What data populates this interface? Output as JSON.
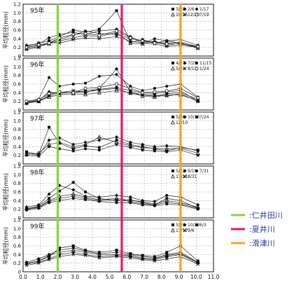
{
  "chart_data": {
    "type": "line",
    "xlabel": "累加距離 (km)",
    "ylabel": "平均粒径(mm)",
    "xlim": [
      0,
      11
    ],
    "ylim": [
      0,
      1.2
    ],
    "x_ticks": [
      "0.0",
      "1.0",
      "2.0",
      "3.0",
      "4.0",
      "5.0",
      "6.0",
      "7.0",
      "8.0",
      "9.0",
      "10.0",
      "11.0"
    ],
    "y_ticks": [
      "0",
      "0.2",
      "0.4",
      "0.6",
      "0.8",
      "1.0",
      "1.2"
    ],
    "grid": true,
    "vertical_markers": [
      {
        "x": 2.0,
        "label": ":仁井田川",
        "color": "#8fd135"
      },
      {
        "x": 5.7,
        "label": ":夏井川",
        "color": "#e8156e"
      },
      {
        "x": 9.1,
        "label": ":滑津川",
        "color": "#f5a623"
      }
    ],
    "panels": [
      {
        "title": "95年",
        "legend": [
          "3/28",
          "2/6",
          "1/17",
          "10/25",
          "12/20",
          "7/19"
        ],
        "series": [
          {
            "name": "3/28",
            "x": [
              0.2,
              0.9,
              1.5,
              2.1,
              2.9,
              3.6,
              4.4,
              5.4,
              6.2,
              6.9,
              7.6,
              8.3,
              9.1,
              10.1
            ],
            "y": [
              0.22,
              0.3,
              0.35,
              0.45,
              0.6,
              0.55,
              0.62,
              1.05,
              0.32,
              0.38,
              0.3,
              0.35,
              0.3,
              0.2
            ]
          },
          {
            "name": "2/6",
            "x": [
              0.2,
              0.9,
              1.5,
              2.1,
              2.9,
              3.6,
              4.4,
              5.4,
              6.2,
              6.9,
              7.6,
              8.3,
              9.1,
              10.1
            ],
            "y": [
              0.25,
              0.28,
              0.42,
              0.5,
              0.55,
              0.5,
              0.58,
              0.62,
              0.45,
              0.3,
              0.4,
              0.35,
              0.38,
              0.25
            ]
          },
          {
            "name": "1/17",
            "x": [
              0.2,
              0.9,
              1.5,
              2.1,
              2.9,
              3.6,
              4.4,
              5.4,
              6.2,
              6.9,
              7.6,
              8.3,
              9.1,
              10.1
            ],
            "y": [
              0.2,
              0.25,
              0.3,
              0.38,
              0.48,
              0.58,
              0.52,
              0.5,
              0.4,
              0.36,
              0.32,
              0.3,
              0.32,
              0.22
            ]
          },
          {
            "name": "10/25",
            "x": [
              0.2,
              0.9,
              1.5,
              2.1,
              2.9,
              3.6,
              4.4,
              5.4,
              6.2,
              6.9,
              7.6,
              8.3,
              9.1,
              10.1
            ],
            "y": [
              0.18,
              0.22,
              0.28,
              0.35,
              0.42,
              0.48,
              0.45,
              0.55,
              0.3,
              0.28,
              0.35,
              0.25,
              0.3,
              0.18
            ]
          },
          {
            "name": "12/20",
            "x": [
              0.2,
              0.9,
              1.5,
              2.1,
              2.9,
              3.6,
              4.4,
              5.4,
              6.2,
              6.9,
              7.6,
              8.3,
              9.1,
              10.1
            ],
            "y": [
              0.15,
              0.2,
              0.32,
              0.3,
              0.38,
              0.42,
              0.4,
              0.45,
              0.35,
              0.3,
              0.28,
              0.22,
              0.25,
              0.2
            ]
          },
          {
            "name": "7/19",
            "x": [
              0.2,
              0.9,
              1.5,
              2.1,
              2.9,
              3.6,
              4.4,
              5.4,
              6.2,
              6.9,
              7.6,
              8.3,
              9.1,
              10.1
            ],
            "y": [
              0.2,
              0.26,
              0.3,
              0.42,
              0.5,
              0.52,
              0.48,
              0.58,
              0.42,
              0.35,
              0.3,
              0.28,
              0.28,
              0.22
            ]
          }
        ]
      },
      {
        "title": "96年",
        "legend": [
          "4/27",
          "7/29",
          "11/15",
          "5/24",
          "8/11",
          "1/24"
        ],
        "series": [
          {
            "name": "4/27",
            "x": [
              0.2,
              0.9,
              1.5,
              2.1,
              2.9,
              3.6,
              4.4,
              5.4,
              6.2,
              6.9,
              7.6,
              8.3,
              9.1,
              10.1
            ],
            "y": [
              0.18,
              0.2,
              0.35,
              0.42,
              0.4,
              0.45,
              0.48,
              0.52,
              0.45,
              0.4,
              0.38,
              0.42,
              0.45,
              0.2
            ]
          },
          {
            "name": "7/29",
            "x": [
              0.2,
              0.9,
              1.5,
              2.1,
              2.9,
              3.6,
              4.4,
              5.4,
              6.2,
              6.9,
              7.6,
              8.3,
              9.1,
              10.1
            ],
            "y": [
              0.15,
              0.22,
              0.42,
              0.38,
              0.42,
              0.4,
              0.5,
              0.95,
              0.42,
              0.35,
              0.32,
              0.38,
              0.4,
              0.25
            ]
          },
          {
            "name": "11/15",
            "x": [
              0.2,
              0.9,
              1.5,
              2.1,
              2.9,
              3.6,
              4.4,
              5.4,
              6.2,
              6.9,
              7.6,
              8.3,
              9.1,
              10.1
            ],
            "y": [
              0.2,
              0.25,
              0.75,
              0.55,
              0.6,
              0.62,
              0.78,
              0.82,
              0.55,
              0.45,
              0.5,
              0.55,
              0.6,
              0.3
            ]
          },
          {
            "name": "5/24",
            "x": [
              0.2,
              0.9,
              1.5,
              2.1,
              2.9,
              3.6,
              4.4,
              5.4,
              6.2,
              6.9,
              7.6,
              8.3,
              9.1,
              10.1
            ],
            "y": [
              0.16,
              0.2,
              0.3,
              0.35,
              0.38,
              0.36,
              0.4,
              0.45,
              0.4,
              0.32,
              0.3,
              0.35,
              0.35,
              0.22
            ]
          },
          {
            "name": "8/11",
            "x": [
              0.2,
              0.9,
              1.5,
              2.1,
              2.9,
              3.6,
              4.4,
              5.4,
              6.2,
              6.9,
              7.6,
              8.3,
              9.1,
              10.1
            ],
            "y": [
              0.18,
              0.22,
              0.32,
              0.4,
              0.45,
              0.42,
              0.46,
              0.5,
              0.38,
              0.36,
              0.34,
              0.32,
              0.38,
              0.2
            ]
          },
          {
            "name": "1/24",
            "x": [
              0.2,
              0.9,
              1.5,
              2.1,
              2.9,
              3.6,
              4.4,
              5.4,
              6.2,
              6.9,
              7.6,
              8.3,
              9.1,
              10.1
            ],
            "y": [
              0.2,
              0.24,
              0.38,
              0.42,
              0.4,
              0.5,
              0.52,
              0.6,
              0.5,
              0.4,
              0.42,
              0.44,
              0.5,
              0.28
            ]
          }
        ]
      },
      {
        "title": "97年",
        "legend": [
          "5/26",
          "10/15",
          "7/24",
          "12/10"
        ],
        "series": [
          {
            "name": "5/26",
            "x": [
              0.2,
              0.9,
              1.5,
              2.1,
              2.9,
              3.6,
              4.4,
              5.4,
              6.2,
              6.9,
              7.6,
              8.3,
              9.1,
              10.1
            ],
            "y": [
              0.28,
              0.22,
              0.85,
              0.48,
              0.35,
              0.42,
              0.38,
              0.55,
              0.45,
              0.4,
              0.35,
              0.3,
              0.38,
              0.32
            ]
          },
          {
            "name": "10/15",
            "x": [
              0.2,
              0.9,
              1.5,
              2.1,
              2.9,
              3.6,
              4.4,
              5.4,
              6.2,
              6.9,
              7.6,
              8.3,
              9.1,
              10.1
            ],
            "y": [
              0.25,
              0.2,
              0.55,
              0.6,
              0.45,
              0.5,
              0.55,
              0.62,
              0.5,
              0.45,
              0.4,
              0.42,
              0.4,
              0.3
            ]
          },
          {
            "name": "7/24",
            "x": [
              0.2,
              0.9,
              1.5,
              2.1,
              2.9,
              3.6,
              4.4,
              5.4,
              6.2,
              6.9,
              7.6,
              8.3,
              9.1,
              10.1
            ],
            "y": [
              0.2,
              0.18,
              0.4,
              0.35,
              0.3,
              0.35,
              0.32,
              0.45,
              0.38,
              0.32,
              0.3,
              0.28,
              0.32,
              0.2
            ]
          },
          {
            "name": "12/10",
            "x": [
              0.2,
              0.9,
              1.5,
              2.1,
              2.9,
              3.6,
              4.4,
              5.4,
              6.2,
              6.9,
              7.6,
              8.3,
              9.1,
              10.1
            ],
            "y": [
              0.22,
              0.25,
              0.45,
              0.5,
              0.4,
              0.45,
              0.62,
              0.5,
              0.42,
              0.38,
              0.36,
              0.35,
              0.36,
              0.25
            ]
          }
        ]
      },
      {
        "title": "98年",
        "legend": [
          "5/22",
          "9/10",
          "7/31",
          "11/21",
          "8/31"
        ],
        "series": [
          {
            "name": "5/22",
            "x": [
              0.2,
              0.9,
              1.5,
              2.1,
              2.9,
              3.6,
              4.4,
              5.4,
              6.2,
              6.9,
              7.6,
              8.3,
              9.1,
              10.1
            ],
            "y": [
              0.2,
              0.28,
              0.45,
              0.62,
              0.82,
              0.6,
              0.45,
              0.4,
              0.42,
              0.35,
              0.3,
              0.45,
              0.4,
              0.22
            ]
          },
          {
            "name": "9/10",
            "x": [
              0.2,
              0.9,
              1.5,
              2.1,
              2.9,
              3.6,
              4.4,
              5.4,
              6.2,
              6.9,
              7.6,
              8.3,
              9.1,
              10.1
            ],
            "y": [
              0.25,
              0.3,
              0.55,
              0.75,
              0.65,
              0.5,
              0.48,
              0.52,
              0.48,
              0.4,
              0.38,
              0.52,
              0.48,
              0.3
            ]
          },
          {
            "name": "7/31",
            "x": [
              0.2,
              0.9,
              1.5,
              2.1,
              2.9,
              3.6,
              4.4,
              5.4,
              6.2,
              6.9,
              7.6,
              8.3,
              9.1,
              10.1
            ],
            "y": [
              0.18,
              0.22,
              0.35,
              0.4,
              0.45,
              0.42,
              0.38,
              0.35,
              0.35,
              0.3,
              0.28,
              0.32,
              0.3,
              0.2
            ]
          },
          {
            "name": "11/21",
            "x": [
              0.2,
              0.9,
              1.5,
              2.1,
              2.9,
              3.6,
              4.4,
              5.4,
              6.2,
              6.9,
              7.6,
              8.3,
              9.1,
              10.1
            ],
            "y": [
              0.22,
              0.25,
              0.4,
              0.5,
              0.55,
              0.48,
              0.42,
              0.45,
              0.4,
              0.38,
              0.32,
              0.4,
              0.35,
              0.25
            ]
          },
          {
            "name": "8/31",
            "x": [
              0.2,
              0.9,
              1.5,
              2.1,
              2.9,
              3.6,
              4.4,
              5.4,
              6.2,
              6.9,
              7.6,
              8.3,
              9.1,
              10.1
            ],
            "y": [
              0.2,
              0.24,
              0.38,
              0.45,
              0.5,
              0.45,
              0.4,
              0.42,
              0.38,
              0.32,
              0.3,
              0.36,
              0.32,
              0.22
            ]
          }
        ]
      },
      {
        "title": "99年",
        "legend": [
          "5/28",
          "10/22",
          "6/3",
          "11/17",
          "9/6"
        ],
        "series": [
          {
            "name": "5/28",
            "x": [
              0.2,
              0.9,
              1.5,
              2.1,
              2.9,
              3.6,
              4.4,
              5.4,
              6.2,
              6.9,
              7.6,
              8.3,
              9.1,
              10.1
            ],
            "y": [
              0.2,
              0.25,
              0.35,
              0.55,
              0.6,
              0.5,
              0.45,
              0.5,
              0.42,
              0.38,
              0.35,
              0.45,
              0.6,
              0.25
            ]
          },
          {
            "name": "10/22",
            "x": [
              0.2,
              0.9,
              1.5,
              2.1,
              2.9,
              3.6,
              4.4,
              5.4,
              6.2,
              6.9,
              7.6,
              8.3,
              9.1,
              10.1
            ],
            "y": [
              0.22,
              0.3,
              0.4,
              0.5,
              0.55,
              0.48,
              0.42,
              0.45,
              0.4,
              0.36,
              0.32,
              0.4,
              0.45,
              0.22
            ]
          },
          {
            "name": "6/3",
            "x": [
              0.2,
              0.9,
              1.5,
              2.1,
              2.9,
              3.6,
              4.4,
              5.4,
              6.2,
              6.9,
              7.6,
              8.3,
              9.1,
              10.1
            ],
            "y": [
              0.18,
              0.22,
              0.3,
              0.4,
              0.45,
              0.4,
              0.35,
              0.38,
              0.35,
              0.3,
              0.28,
              0.35,
              0.4,
              0.2
            ]
          },
          {
            "name": "11/17",
            "x": [
              0.2,
              0.9,
              1.5,
              2.1,
              2.9,
              3.6,
              4.4,
              5.4,
              6.2,
              6.9,
              7.6,
              8.3,
              9.1,
              10.1
            ],
            "y": [
              0.2,
              0.25,
              0.38,
              0.45,
              0.5,
              0.45,
              0.4,
              0.4,
              0.38,
              0.32,
              0.3,
              0.38,
              0.42,
              0.22
            ]
          },
          {
            "name": "9/6",
            "x": [
              0.2,
              0.9,
              1.5,
              2.1,
              2.9,
              3.6,
              4.4,
              5.4,
              6.2,
              6.9,
              7.6,
              8.3,
              9.1,
              10.1
            ],
            "y": [
              0.15,
              0.2,
              0.28,
              0.35,
              0.4,
              0.38,
              0.32,
              0.35,
              0.32,
              0.28,
              0.25,
              0.3,
              0.35,
              0.18
            ]
          }
        ]
      }
    ]
  }
}
